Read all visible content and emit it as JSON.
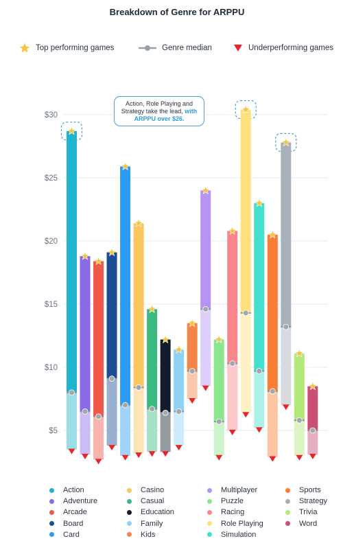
{
  "title": "Breakdown of Genre for ARPPU",
  "legend_top": [
    {
      "label": "Top performing games",
      "icon": "star-icon",
      "color": "#f5c542"
    },
    {
      "label": "Genre median",
      "icon": "median-line-icon",
      "color": "#9aa0a8"
    },
    {
      "label": "Underperforming games",
      "icon": "triangle-down-icon",
      "color": "#e8252a"
    }
  ],
  "callout": {
    "line1": "Action, Role Playing and",
    "line2_pre": "Strategy take the lead, ",
    "line2_hl": "with",
    "line3_hl": "ARPPU over $26."
  },
  "chart_data": {
    "type": "bar",
    "subtype": "range-bar",
    "title": "Breakdown of Genre for ARPPU",
    "xlabel": "",
    "ylabel": "",
    "ylim": [
      2.5,
      31.5
    ],
    "yticks": [
      5,
      10,
      15,
      20,
      25,
      30
    ],
    "ytick_labels": [
      "$5",
      "$10",
      "$15",
      "$20",
      "$25",
      "$30"
    ],
    "grid": true,
    "highlighted": [
      "Action",
      "Role Playing",
      "Strategy"
    ],
    "categories": [
      "Action",
      "Adventure",
      "Arcade",
      "Board",
      "Card",
      "Casino",
      "Casual",
      "Education",
      "Family",
      "Kids",
      "Multiplayer",
      "Puzzle",
      "Racing",
      "Role Playing",
      "Simulation",
      "Sports",
      "Strategy",
      "Trivia",
      "Word"
    ],
    "series": [
      {
        "name": "Top performing games",
        "values": [
          28.7,
          18.8,
          18.4,
          19.1,
          25.9,
          21.4,
          14.6,
          12.2,
          11.4,
          13.5,
          24.0,
          12.2,
          20.8,
          30.4,
          23.0,
          20.5,
          27.8,
          11.1,
          8.5
        ]
      },
      {
        "name": "Genre median",
        "values": [
          8.0,
          6.5,
          6.1,
          9.1,
          7.0,
          8.4,
          6.7,
          6.4,
          6.5,
          9.7,
          14.6,
          5.7,
          10.3,
          14.3,
          9.7,
          8.1,
          13.2,
          5.8,
          5.0
        ]
      },
      {
        "name": "Underperforming games",
        "values": [
          3.5,
          3.1,
          2.7,
          3.8,
          3.0,
          3.2,
          3.3,
          3.3,
          3.8,
          7.5,
          8.5,
          3.0,
          5.0,
          6.4,
          5.2,
          2.9,
          7.0,
          3.0,
          3.1
        ]
      }
    ],
    "colors": [
      "#1fb5d1",
      "#8a6ae6",
      "#f0584c",
      "#1d4d94",
      "#2e9bf2",
      "#fbc65e",
      "#3bb980",
      "#131c2c",
      "#8fd2f4",
      "#f48548",
      "#b495f4",
      "#8ce68f",
      "#f9868a",
      "#ffe07c",
      "#42e0cf",
      "#fa7d35",
      "#a7b0bb",
      "#b2e979",
      "#ca4f74"
    ]
  }
}
